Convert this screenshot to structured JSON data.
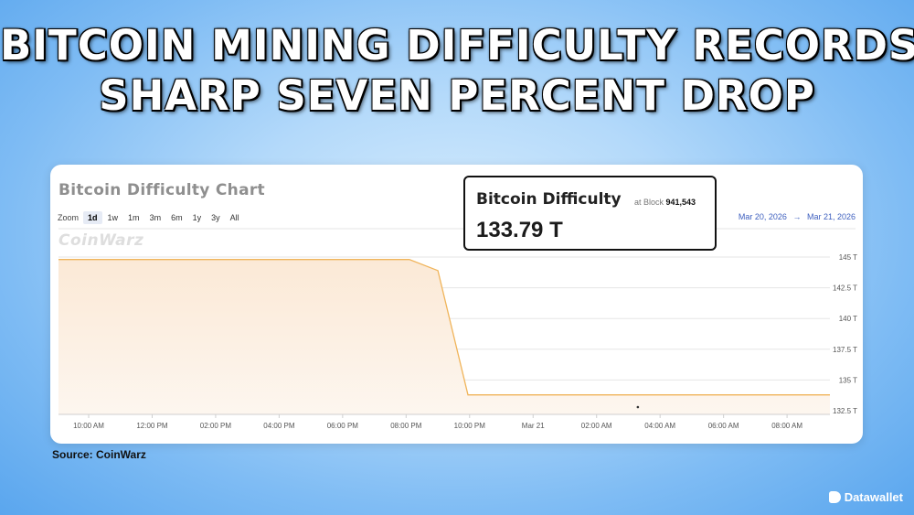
{
  "headline": {
    "line1": "BITCOIN MINING DIFFICULTY RECORDS",
    "line2": "SHARP SEVEN PERCENT DROP"
  },
  "card": {
    "title": "Bitcoin Difficulty Chart",
    "zoom_label": "Zoom",
    "zoom_options": [
      "1d",
      "1w",
      "1m",
      "3m",
      "6m",
      "1y",
      "3y",
      "All"
    ],
    "zoom_selected": "1d",
    "watermark": "CoinWarz",
    "range_from": "Mar 20, 2026",
    "range_arrow": "→",
    "range_to": "Mar 21, 2026"
  },
  "infobox": {
    "title": "Bitcoin Difficulty",
    "block_prefix": "at Block",
    "block_number": "941,543",
    "value": "133.79 T"
  },
  "source": "Source: CoinWarz",
  "brand": "Datawallet",
  "colors": {
    "line": "#f0b45a",
    "fill_top": "#fbe9d6",
    "fill_bottom": "#fdf6ef",
    "grid": "#e6e6e6"
  },
  "chart_data": {
    "type": "area",
    "title": "Bitcoin Difficulty Chart",
    "x_tick_labels": [
      "10:00 AM",
      "12:00 PM",
      "02:00 PM",
      "04:00 PM",
      "06:00 PM",
      "08:00 PM",
      "10:00 PM",
      "Mar 21",
      "02:00 AM",
      "04:00 AM",
      "06:00 AM",
      "08:00 AM"
    ],
    "x_tick_hours": [
      10,
      12,
      14,
      16,
      18,
      20,
      22,
      24,
      26,
      28,
      30,
      32
    ],
    "xlim_hours": [
      9.05,
      33.35
    ],
    "y_ticks": [
      132.5,
      135,
      137.5,
      140,
      142.5,
      145
    ],
    "y_tick_labels": [
      "132.5 T",
      "135 T",
      "137.5 T",
      "140 T",
      "142.5 T",
      "145 T"
    ],
    "ylim": [
      132.5,
      145
    ],
    "unit": "T",
    "series": [
      {
        "x_hours": [
          9.05,
          20.1,
          21.0,
          21.95,
          33.35
        ],
        "values": [
          144.8,
          144.8,
          143.9,
          133.79,
          133.79
        ]
      }
    ],
    "grid": true
  }
}
